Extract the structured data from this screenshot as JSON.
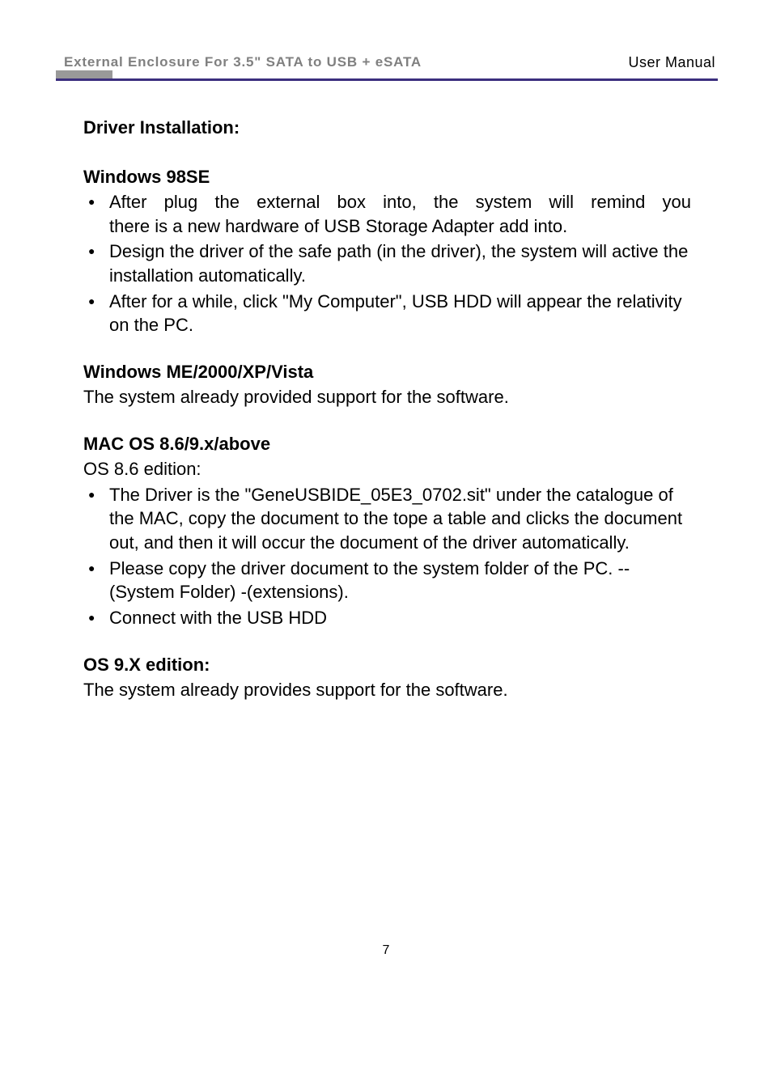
{
  "header": {
    "title_left": "External Enclosure For 3.5\" SATA to USB + eSATA",
    "title_right": "User Manual",
    "header_bg_color": "#999999",
    "header_line_color": "#3b2e7e"
  },
  "content": {
    "main_title": "Driver Installation:",
    "sections": [
      {
        "title": "Windows 98SE",
        "bullets": [
          {
            "text_line1": "After plug the external box into, the system will remind you",
            "text_line2": "there is a new hardware of USB Storage Adapter add into.",
            "line1_justified": true
          },
          {
            "text": "Design the driver of the safe path (in the driver), the system will active the installation automatically."
          },
          {
            "text": "After for a while, click \"My Computer\", USB HDD will appear the relativity on the PC."
          }
        ]
      },
      {
        "title": "Windows ME/2000/XP/Vista",
        "body": "The system already provided support for the software."
      },
      {
        "title": "MAC OS 8.6/9.x/above",
        "subtitle": "OS 8.6 edition:",
        "bullets": [
          {
            "text": "The Driver is the \"GeneUSBIDE_05E3_0702.sit\" under the catalogue of the MAC, copy the document to the tope a table and clicks the document out, and then it will occur the document of the driver automatically."
          },
          {
            "text": "Please copy the driver document to the system folder of the PC. -- (System Folder) -(extensions)."
          },
          {
            "text": "Connect with the USB HDD"
          }
        ]
      },
      {
        "title": "OS 9.X edition:",
        "body": "The system already provides support for the software."
      }
    ]
  },
  "page_number": "7",
  "colors": {
    "text": "#000000",
    "gray_text": "#808080",
    "gray_bg": "#999999",
    "line": "#3b2e7e",
    "page_bg": "#ffffff"
  },
  "typography": {
    "body_fontsize": 22,
    "header_fontsize": 17,
    "page_num_fontsize": 16
  }
}
